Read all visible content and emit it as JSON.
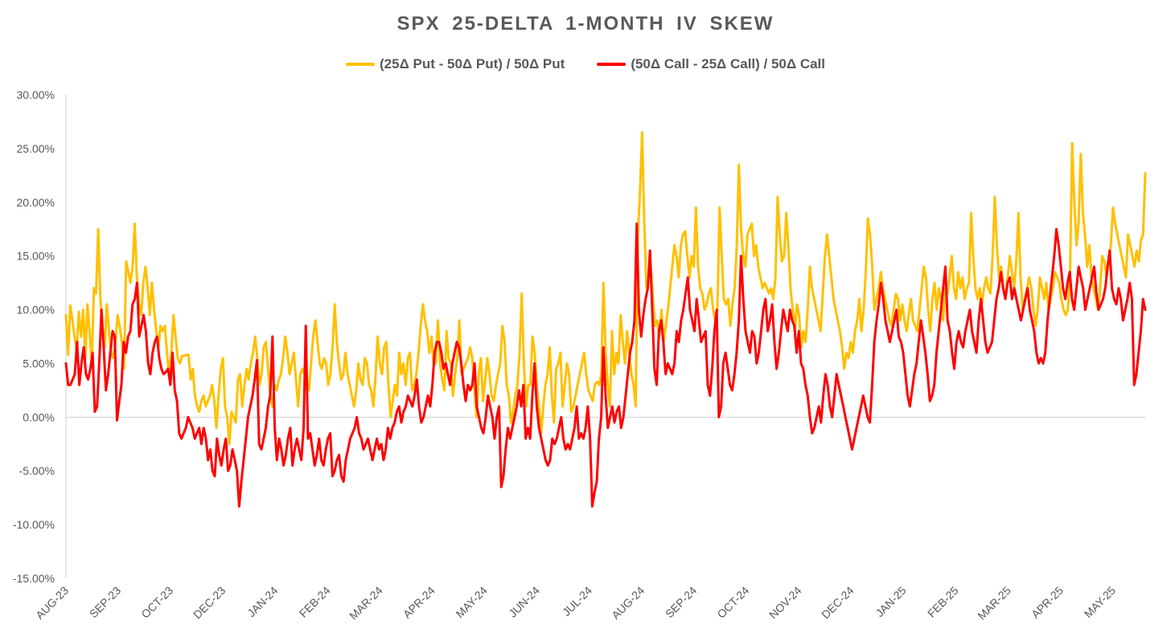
{
  "chart_data": {
    "type": "line",
    "title": "SPX 25-DELTA 1-MONTH IV SKEW",
    "xlabel": "",
    "ylabel": "",
    "ylim": [
      -15,
      30
    ],
    "y_tick_values": [
      30,
      25,
      20,
      15,
      10,
      5,
      0,
      -5,
      -10,
      -15
    ],
    "y_tick_labels": [
      "30.00%",
      "25.00%",
      "20.00%",
      "15.00%",
      "10.00%",
      "5.00%",
      "0.00%",
      "-5.00%",
      "-10.00%",
      "-15.00%"
    ],
    "x_tick_labels": [
      "AUG-23",
      "SEP-23",
      "OCT-23",
      "DEC-23",
      "JAN-24",
      "FEB-24",
      "MAR-24",
      "APR-24",
      "MAY-24",
      "JUN-24",
      "JUL-24",
      "AUG-24",
      "SEP-24",
      "OCT-24",
      "NOV-24",
      "DEC-24",
      "JAN-25",
      "FEB-25",
      "MAR-25",
      "APR-25",
      "MAY-25"
    ],
    "legend_position": "top-center",
    "grid": false,
    "series": [
      {
        "name": "(25Δ Put - 50Δ Put) / 50Δ Put",
        "color": "#FFC000",
        "values": [
          9.5,
          5.8,
          10.4,
          9,
          7.5,
          6.2,
          9.8,
          7.5,
          10,
          5.5,
          10.5,
          8,
          5,
          12,
          11.5,
          17.5,
          11,
          8,
          6.5,
          10.5,
          8,
          6,
          5.5,
          7,
          9.5,
          8.5,
          7,
          4.5,
          14.5,
          13.5,
          12.5,
          14,
          18,
          13,
          10.5,
          9.5,
          12.5,
          14,
          12,
          9.5,
          12.5,
          10,
          8,
          6.5,
          8.5,
          8,
          8.5,
          6,
          4,
          6,
          9.5,
          7.5,
          5.5,
          5,
          5.7,
          5.7,
          5.8,
          5.8,
          3.5,
          4.5,
          2,
          1,
          0.5,
          1.5,
          2,
          1,
          1.5,
          2,
          3,
          1.5,
          -1,
          2,
          4.5,
          5.5,
          1,
          0,
          -2.5,
          0.5,
          0,
          -0.5,
          3.5,
          4,
          1,
          3,
          4.5,
          3.5,
          5,
          6,
          7.5,
          5.5,
          3,
          4,
          6.5,
          7,
          4.5,
          2,
          1,
          3,
          2.5,
          3.5,
          4,
          5.5,
          7.5,
          6,
          4,
          5,
          6,
          3.5,
          1,
          4,
          4.5,
          4,
          3.5,
          2.5,
          5,
          7.5,
          9,
          7,
          5,
          4.5,
          5.5,
          5,
          3,
          4,
          6.5,
          10.5,
          7,
          5,
          3.5,
          4,
          6,
          4,
          3,
          2,
          1,
          2.5,
          5,
          3.5,
          3,
          5.5,
          5,
          3,
          2.5,
          1,
          4,
          7.5,
          5,
          4,
          6.5,
          7,
          3,
          0,
          1.5,
          3,
          2,
          6,
          4,
          5,
          3,
          5.5,
          6,
          2.5,
          3,
          4,
          6,
          8.5,
          10.5,
          9,
          8,
          6,
          7.5,
          5,
          5,
          9,
          5,
          3.5,
          2.5,
          8,
          5.5,
          5,
          2,
          4,
          5.5,
          9,
          4,
          4.5,
          5,
          5.5,
          6.5,
          5.5,
          2.5,
          0,
          4,
          5.5,
          1.5,
          3.5,
          5.5,
          4,
          2,
          1.5,
          3,
          4,
          5,
          8.5,
          7,
          3,
          2,
          -0.5,
          0.5,
          2,
          3,
          6,
          11.5,
          5,
          1,
          3,
          3,
          7.5,
          6,
          3,
          1,
          -1.5,
          1,
          3,
          4,
          6.5,
          2,
          -0.5,
          4.5,
          5,
          6,
          1,
          3,
          5,
          4,
          0.5,
          1,
          2,
          3,
          4,
          5,
          6,
          4,
          2.5,
          2,
          1.5,
          3,
          3.3,
          3,
          4,
          12.5,
          6,
          3,
          1,
          8,
          4,
          6,
          5,
          9.5,
          7,
          5,
          8,
          6,
          4,
          3,
          1,
          17,
          21,
          26.5,
          18,
          12,
          13,
          14,
          11,
          8.5,
          9,
          7.5,
          10,
          7,
          8.5,
          10,
          12,
          14,
          16,
          15,
          13,
          16,
          17,
          17.3,
          15,
          13,
          15,
          14,
          19.5,
          14,
          12,
          11.5,
          10,
          10.5,
          11.5,
          12,
          10,
          9,
          10,
          19.5,
          15,
          11,
          10.5,
          11,
          8.5,
          10.5,
          12,
          16,
          23.5,
          17.5,
          15,
          14,
          17,
          17.5,
          18,
          15,
          16,
          14,
          13,
          12,
          12.5,
          12,
          11.5,
          12,
          11,
          13,
          20.5,
          17,
          14.5,
          15,
          19,
          16,
          12,
          10,
          8,
          10.5,
          9.5,
          6.5,
          8,
          7,
          10,
          14,
          12,
          11,
          10,
          9,
          8,
          11.5,
          15,
          17,
          15,
          13,
          11,
          10,
          9,
          8,
          6.5,
          4.5,
          6,
          5.5,
          7,
          6,
          8,
          9,
          11,
          8,
          10,
          13.5,
          18.5,
          17,
          14,
          10,
          11,
          12,
          13.5,
          12,
          11,
          10,
          9,
          8.5,
          10,
          11.5,
          11,
          9,
          10.5,
          9,
          8,
          9.5,
          11,
          9,
          8.5,
          8,
          10,
          12,
          14,
          13,
          10,
          8,
          11,
          12.5,
          10,
          12,
          11,
          9,
          12,
          11.5,
          13,
          15,
          12,
          11,
          13.5,
          12,
          13,
          11,
          12,
          12.5,
          19,
          15,
          12,
          11,
          12,
          10.5,
          12,
          13,
          12,
          11.5,
          15,
          20.5,
          16,
          13,
          14,
          12,
          11,
          13,
          15,
          13.5,
          12,
          14.5,
          19,
          13,
          10,
          11,
          12,
          13,
          12,
          10,
          8.5,
          10,
          13,
          12,
          11,
          12.5,
          10,
          11,
          12,
          13.5,
          13,
          12.5,
          11,
          10,
          9.5,
          10,
          13,
          25.5,
          20,
          16,
          18,
          24.5,
          19,
          17,
          14,
          16,
          13,
          12,
          11,
          10,
          12,
          15,
          14.5,
          13,
          14.5,
          16,
          19.5,
          18,
          17,
          16,
          15,
          14,
          13,
          17,
          16,
          15,
          14,
          15.5,
          14.5,
          16.5,
          17,
          22.7
        ]
      },
      {
        "name": "(50Δ Call - 25Δ Call) / 50Δ Call",
        "color": "#FF0000",
        "values": [
          5,
          3,
          3,
          3.5,
          4,
          7,
          3,
          5,
          6.5,
          4,
          3.5,
          4.5,
          6,
          0.5,
          1,
          5,
          10,
          6.5,
          2.5,
          4,
          6,
          8,
          7.5,
          -0.3,
          1.5,
          3,
          7,
          6,
          7.5,
          8,
          10.5,
          11,
          12.5,
          7.5,
          8.5,
          9.5,
          8,
          5,
          4,
          6,
          7,
          7.5,
          5.5,
          4.5,
          4,
          4.2,
          4.5,
          3,
          6,
          2.5,
          1.5,
          -1.5,
          -2,
          -1.5,
          -1,
          0,
          -0.5,
          -1,
          -2,
          -1.5,
          -1,
          -2.5,
          -1,
          -2,
          -4,
          -3,
          -5,
          -5.5,
          -2,
          -3.5,
          -4.5,
          -3,
          -2,
          -5,
          -4.5,
          -3,
          -4,
          -5,
          -8.3,
          -6,
          -4,
          -2,
          0,
          1,
          2,
          3.5,
          5.3,
          -2.5,
          -3,
          -2,
          -1,
          1,
          2,
          7.5,
          -1,
          -4,
          -2,
          -3,
          -4.5,
          -3.5,
          -2,
          -1,
          -4.5,
          -3,
          -2,
          -3,
          -4,
          -1,
          8.5,
          -2,
          -1.5,
          -3,
          -4.5,
          -3.5,
          -2,
          -4,
          -4.5,
          -3,
          -2,
          -1.5,
          -5.5,
          -5,
          -4,
          -3.5,
          -5.5,
          -6,
          -4,
          -3,
          -2,
          -1.5,
          -1,
          0,
          -1.5,
          -2,
          -3,
          -2.5,
          -2,
          -3,
          -4,
          -3,
          -2,
          -3,
          -2.5,
          -4,
          -3,
          -1,
          -2,
          -1,
          -0.5,
          0.5,
          1,
          -0.5,
          0.5,
          1,
          2,
          1.5,
          1,
          2,
          3.5,
          1,
          -0.5,
          0,
          1,
          2,
          1,
          3,
          6,
          7,
          7,
          6,
          4.5,
          5,
          4,
          3,
          5,
          6,
          7,
          6.5,
          5,
          3,
          1.5,
          3,
          2.5,
          3,
          5,
          1,
          0,
          -1,
          -1.5,
          0,
          2,
          1,
          0,
          -2,
          0,
          1,
          -6.5,
          -5.5,
          -3,
          -1,
          -2,
          -1,
          0,
          1,
          2.5,
          1,
          3,
          -2,
          -1,
          -2,
          2,
          5,
          1,
          -1,
          -2,
          -3,
          -4,
          -4.5,
          -4,
          -2,
          -2.5,
          -2,
          -1,
          0,
          -2,
          -3,
          -2.5,
          -3,
          -2,
          -1,
          1,
          -2,
          -1.5,
          -2,
          -1,
          1,
          -2,
          -8.3,
          -7,
          -6,
          -2,
          0,
          6.5,
          2,
          -1,
          0,
          1,
          -0.5,
          0.5,
          1,
          -1,
          0,
          2,
          4,
          6,
          7,
          9,
          18,
          10,
          7.5,
          9.5,
          11,
          12,
          15.5,
          10,
          4.5,
          3,
          8,
          9,
          7,
          4,
          5,
          4.5,
          4,
          5,
          8,
          7,
          9,
          10,
          11.5,
          13,
          10,
          9,
          8,
          11,
          9,
          7,
          7.5,
          8,
          3,
          2,
          4.5,
          8,
          10,
          0,
          1,
          5,
          6,
          4.5,
          3,
          2.5,
          4,
          6,
          9,
          15,
          11,
          8,
          7,
          6,
          8,
          7.5,
          5,
          6,
          8,
          10,
          11,
          8,
          9,
          10.5,
          7,
          4.5,
          6,
          8,
          10,
          9,
          8,
          10,
          9,
          8.5,
          6,
          8,
          5,
          4.5,
          3,
          2,
          0,
          -1.5,
          -1,
          0,
          1,
          -0.5,
          2,
          4,
          3,
          1,
          0,
          2,
          4,
          3,
          2,
          1,
          0,
          -1,
          -2,
          -3,
          -2,
          -1,
          0,
          1,
          2,
          1,
          0,
          -0.5,
          3,
          7,
          9,
          10.5,
          12.5,
          11,
          9,
          8,
          7,
          8,
          9,
          10,
          7.5,
          7,
          6,
          4,
          2,
          1,
          2.5,
          4,
          5,
          7,
          9,
          7.5,
          6,
          4,
          1.5,
          2,
          3,
          6,
          8,
          10,
          12,
          14,
          9,
          8,
          6,
          4.5,
          7,
          8,
          7,
          6.5,
          8,
          9,
          10,
          8,
          7,
          6,
          9,
          11,
          9,
          7,
          6,
          6.5,
          7,
          9,
          11,
          12,
          13.5,
          12,
          11,
          12.5,
          13,
          11,
          12,
          11,
          10,
          9,
          10,
          11,
          12,
          10,
          9,
          8,
          6,
          5,
          5.5,
          5,
          6,
          9,
          11,
          13,
          15,
          17.5,
          16,
          14,
          12,
          11,
          12.5,
          13.5,
          11,
          10,
          12,
          14,
          13,
          12,
          10,
          11,
          12,
          13,
          14,
          11.5,
          10,
          10.5,
          11,
          12,
          14,
          15.5,
          12,
          11,
          10.5,
          12,
          11,
          9,
          10,
          11,
          12.5,
          11,
          3,
          4,
          6,
          8,
          11,
          10
        ]
      }
    ]
  }
}
